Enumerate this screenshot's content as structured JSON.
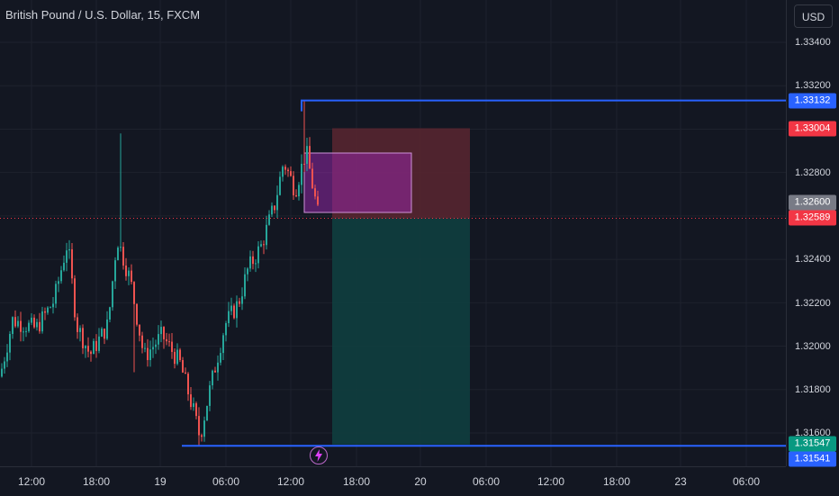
{
  "chart": {
    "title": "British Pound / U.S. Dollar, 15, FXCM",
    "currency": "USD",
    "alert_icon": "lightning-icon",
    "price_ticks": [
      "1.33400",
      "1.33200",
      "1.32800",
      "1.32400",
      "1.32200",
      "1.32000",
      "1.31800",
      "1.31600"
    ],
    "time_ticks": [
      "12:00",
      "18:00",
      "19",
      "06:00",
      "12:00",
      "18:00",
      "20",
      "06:00",
      "12:00",
      "18:00",
      "23",
      "06:00"
    ],
    "badges": {
      "upper_level": "1.33132",
      "stop_loss": "1.33004",
      "entry": "1.32600",
      "last_price": "1.32589",
      "take_profit": "1.31547",
      "lower_level": "1.31541"
    },
    "colors": {
      "background": "#131722",
      "up_candle": "#26a69a",
      "down_candle": "#ef5350",
      "level_line": "#2962ff",
      "stop_zone": "#5b2630",
      "target_zone": "#103e3f",
      "highlight_box": "#9c27b0"
    }
  },
  "chart_data": {
    "type": "candlestick",
    "title": "British Pound / U.S. Dollar, 15, FXCM",
    "ylim": [
      1.315,
      1.3352
    ],
    "key_points": [
      {
        "x": "12:00 (18th)",
        "close": 1.321
      },
      {
        "x": "15:00 (18th)",
        "high": 1.325
      },
      {
        "x": "18:00 (18th)",
        "close": 1.3196
      },
      {
        "x": "20:00 (18th)",
        "high": 1.329
      },
      {
        "x": "21:00 (18th)",
        "low": 1.317
      },
      {
        "x": "04:00 (19th)",
        "low": 1.3154
      },
      {
        "x": "10:00 (19th)",
        "close": 1.3268
      },
      {
        "x": "13:00 (19th)",
        "high": 1.3313
      },
      {
        "x": "14:00 (19th)",
        "close": 1.32589
      }
    ],
    "levels": {
      "upper_line": 1.33132,
      "stop_loss": 1.33004,
      "entry": 1.326,
      "last_price": 1.32589,
      "take_profit": 1.31547,
      "lower_line": 1.31541
    }
  }
}
